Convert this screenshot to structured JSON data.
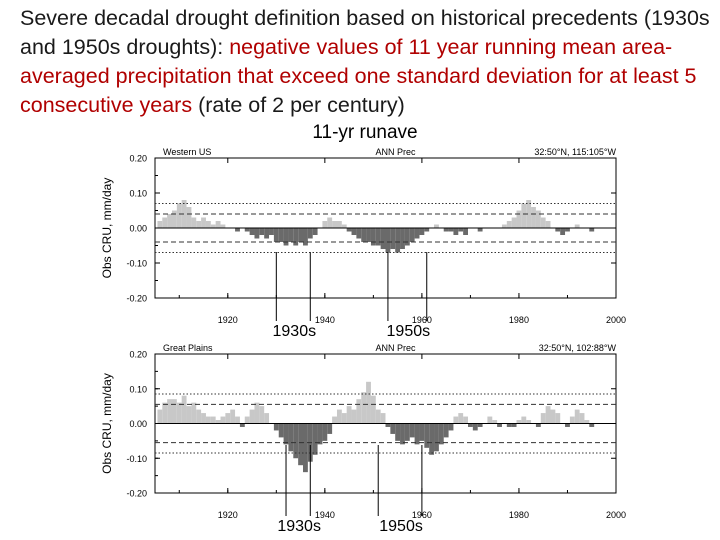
{
  "title": {
    "part1": "Severe decadal drought definition based on historical precedents (1930s and 1950s droughts):",
    "part2": "negative values of 11 year running mean area-averaged precipitation that exceed one standard deviation for at least 5 consecutive years",
    "part3": "(rate of 2 per century)"
  },
  "main_title": "11-yr runave",
  "colors": {
    "positive": "#c8c8c8",
    "negative": "#6a6a6a",
    "text_red": "#b00000"
  },
  "chart_data": [
    {
      "type": "bar",
      "panel_label": "Western US",
      "variable": "ANN Prec",
      "location": "32:50°N, 115:105°W",
      "ylabel": "Obs CRU, mm/day",
      "ylim": [
        -0.2,
        0.2
      ],
      "yticks": [
        "0.20",
        "0.10",
        "0.00",
        "-0.10",
        "-0.20"
      ],
      "xlim": [
        1905,
        2000
      ],
      "xticks": [
        "1920",
        "1940",
        "1960",
        "1980",
        "2000"
      ],
      "std_lines": [
        0.04,
        -0.04
      ],
      "dotted_lines": [
        0.07,
        -0.07
      ],
      "x": [
        1906,
        1907,
        1908,
        1909,
        1910,
        1911,
        1912,
        1913,
        1914,
        1915,
        1916,
        1917,
        1918,
        1919,
        1920,
        1921,
        1922,
        1923,
        1924,
        1925,
        1926,
        1927,
        1928,
        1929,
        1930,
        1931,
        1932,
        1933,
        1934,
        1935,
        1936,
        1937,
        1938,
        1939,
        1940,
        1941,
        1942,
        1943,
        1944,
        1945,
        1946,
        1947,
        1948,
        1949,
        1950,
        1951,
        1952,
        1953,
        1954,
        1955,
        1956,
        1957,
        1958,
        1959,
        1960,
        1961,
        1962,
        1963,
        1964,
        1965,
        1966,
        1967,
        1968,
        1969,
        1970,
        1971,
        1972,
        1973,
        1974,
        1975,
        1976,
        1977,
        1978,
        1979,
        1980,
        1981,
        1982,
        1983,
        1984,
        1985,
        1986,
        1987,
        1988,
        1989,
        1990,
        1991,
        1992,
        1993,
        1994,
        1995
      ],
      "values": [
        0.02,
        0.03,
        0.04,
        0.05,
        0.07,
        0.08,
        0.06,
        0.03,
        0.02,
        0.03,
        0.02,
        0.01,
        0.02,
        0.01,
        0.0,
        0.0,
        -0.01,
        0.0,
        -0.01,
        -0.02,
        -0.03,
        -0.02,
        -0.03,
        -0.02,
        -0.04,
        -0.04,
        -0.05,
        -0.04,
        -0.05,
        -0.04,
        -0.05,
        -0.03,
        -0.02,
        0.0,
        0.02,
        0.03,
        0.02,
        0.02,
        0.01,
        -0.01,
        -0.02,
        -0.03,
        -0.04,
        -0.04,
        -0.05,
        -0.05,
        -0.06,
        -0.07,
        -0.06,
        -0.07,
        -0.06,
        -0.05,
        -0.04,
        -0.03,
        -0.02,
        -0.01,
        0.0,
        0.01,
        0.0,
        -0.01,
        -0.01,
        -0.02,
        -0.01,
        -0.02,
        0.0,
        0.0,
        -0.01,
        0.0,
        0.0,
        0.0,
        0.0,
        0.01,
        0.02,
        0.03,
        0.05,
        0.07,
        0.08,
        0.06,
        0.05,
        0.03,
        0.02,
        0.0,
        -0.01,
        -0.02,
        -0.01,
        0.0,
        0.01,
        0.0,
        0.0,
        -0.01
      ],
      "annotations": [
        {
          "label": "1930s",
          "years": [
            1930,
            1937
          ]
        },
        {
          "label": "1950s",
          "years": [
            1953,
            1961
          ]
        }
      ]
    },
    {
      "type": "bar",
      "panel_label": "Great Plains",
      "variable": "ANN Prec",
      "location": "32:50°N, 102:88°W",
      "ylabel": "Obs CRU, mm/day",
      "ylim": [
        -0.2,
        0.2
      ],
      "yticks": [
        "0.20",
        "0.10",
        "0.00",
        "-0.10",
        "-0.20"
      ],
      "xlim": [
        1905,
        2000
      ],
      "xticks": [
        "1920",
        "1940",
        "1960",
        "1980",
        "2000"
      ],
      "std_lines": [
        0.055,
        -0.055
      ],
      "dotted_lines": [
        0.085,
        -0.085
      ],
      "x": [
        1906,
        1907,
        1908,
        1909,
        1910,
        1911,
        1912,
        1913,
        1914,
        1915,
        1916,
        1917,
        1918,
        1919,
        1920,
        1921,
        1922,
        1923,
        1924,
        1925,
        1926,
        1927,
        1928,
        1929,
        1930,
        1931,
        1932,
        1933,
        1934,
        1935,
        1936,
        1937,
        1938,
        1939,
        1940,
        1941,
        1942,
        1943,
        1944,
        1945,
        1946,
        1947,
        1948,
        1949,
        1950,
        1951,
        1952,
        1953,
        1954,
        1955,
        1956,
        1957,
        1958,
        1959,
        1960,
        1961,
        1962,
        1963,
        1964,
        1965,
        1966,
        1967,
        1968,
        1969,
        1970,
        1971,
        1972,
        1973,
        1974,
        1975,
        1976,
        1977,
        1978,
        1979,
        1980,
        1981,
        1982,
        1983,
        1984,
        1985,
        1986,
        1987,
        1988,
        1989,
        1990,
        1991,
        1992,
        1993,
        1994,
        1995
      ],
      "values": [
        0.04,
        0.06,
        0.07,
        0.07,
        0.06,
        0.08,
        0.05,
        0.06,
        0.04,
        0.03,
        0.02,
        0.02,
        0.01,
        0.02,
        0.03,
        0.04,
        0.02,
        -0.01,
        0.02,
        0.04,
        0.06,
        0.05,
        0.03,
        0.0,
        -0.02,
        -0.04,
        -0.06,
        -0.08,
        -0.1,
        -0.12,
        -0.14,
        -0.11,
        -0.09,
        -0.06,
        -0.05,
        -0.03,
        0.02,
        0.04,
        0.03,
        0.05,
        0.04,
        0.07,
        0.09,
        0.12,
        0.08,
        0.04,
        0.03,
        -0.01,
        -0.03,
        -0.05,
        -0.06,
        -0.05,
        -0.04,
        -0.06,
        -0.05,
        -0.07,
        -0.09,
        -0.08,
        -0.06,
        -0.04,
        -0.02,
        0.02,
        0.03,
        0.02,
        -0.01,
        -0.02,
        -0.01,
        0.0,
        0.02,
        0.01,
        -0.01,
        0.0,
        -0.01,
        -0.01,
        0.01,
        0.02,
        0.01,
        0.0,
        -0.01,
        0.03,
        0.05,
        0.04,
        0.03,
        0.0,
        -0.01,
        0.02,
        0.04,
        0.03,
        0.01,
        -0.01
      ],
      "annotations": [
        {
          "label": "1930s",
          "years": [
            1932,
            1937
          ]
        },
        {
          "label": "1950s",
          "years": [
            1951,
            1960
          ]
        }
      ]
    }
  ]
}
